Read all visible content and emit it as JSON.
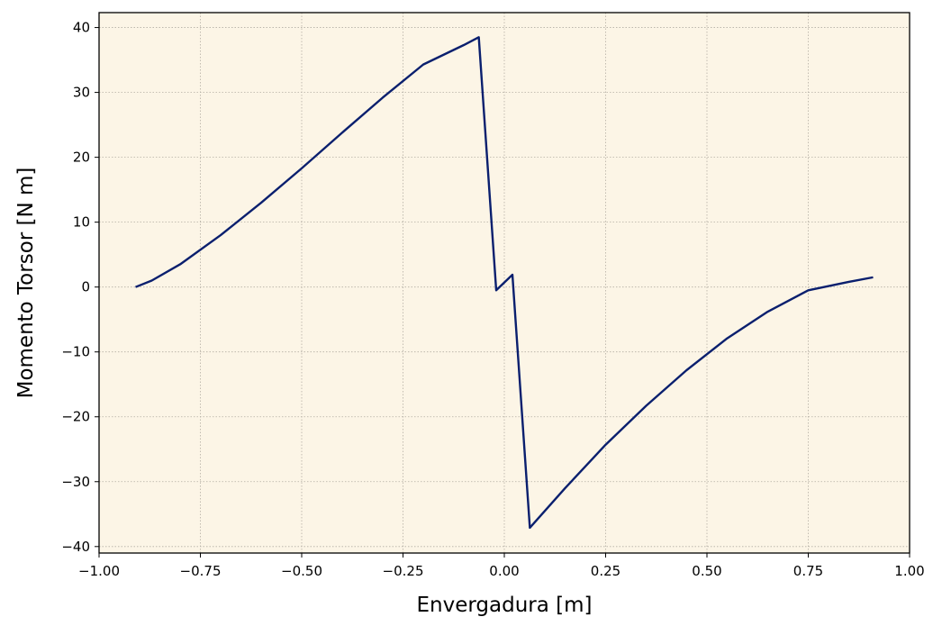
{
  "chart_data": {
    "type": "line",
    "xlabel": "Envergadura [m]",
    "ylabel": "Momento Torsor [N m]",
    "xlim": [
      -1.0,
      1.0
    ],
    "ylim": [
      -41,
      42.3
    ],
    "xticks": [
      -1.0,
      -0.75,
      -0.5,
      -0.25,
      0.0,
      0.25,
      0.5,
      0.75,
      1.0
    ],
    "xtick_labels": [
      "−1.00",
      "−0.75",
      "−0.50",
      "−0.25",
      "0.00",
      "0.25",
      "0.50",
      "0.75",
      "1.00"
    ],
    "yticks": [
      40,
      30,
      20,
      10,
      0,
      -10,
      -20,
      -30,
      -40
    ],
    "ytick_labels": [
      "40",
      "30",
      "20",
      "10",
      "0",
      "−10",
      "−20",
      "−30",
      "−40"
    ],
    "grid": true,
    "series": [
      {
        "color": "#0a1f6e",
        "x": [
          -0.91,
          -0.87,
          -0.8,
          -0.7,
          -0.6,
          -0.5,
          -0.4,
          -0.3,
          -0.2,
          -0.1,
          -0.063,
          -0.02,
          0.02,
          0.063,
          0.15,
          0.25,
          0.35,
          0.45,
          0.55,
          0.65,
          0.75,
          0.85,
          0.91
        ],
        "y": [
          0.0,
          1.0,
          3.5,
          8.0,
          13.0,
          18.3,
          23.8,
          29.2,
          34.3,
          37.3,
          38.5,
          -0.5,
          1.9,
          -37.1,
          -31.0,
          -24.3,
          -18.3,
          -12.8,
          -7.9,
          -3.8,
          -0.5,
          0.8,
          1.5
        ]
      }
    ]
  },
  "colors": {
    "plot_background": "#fcf5e6",
    "line": "#0a1f6e",
    "grid": "#b3aea4"
  }
}
